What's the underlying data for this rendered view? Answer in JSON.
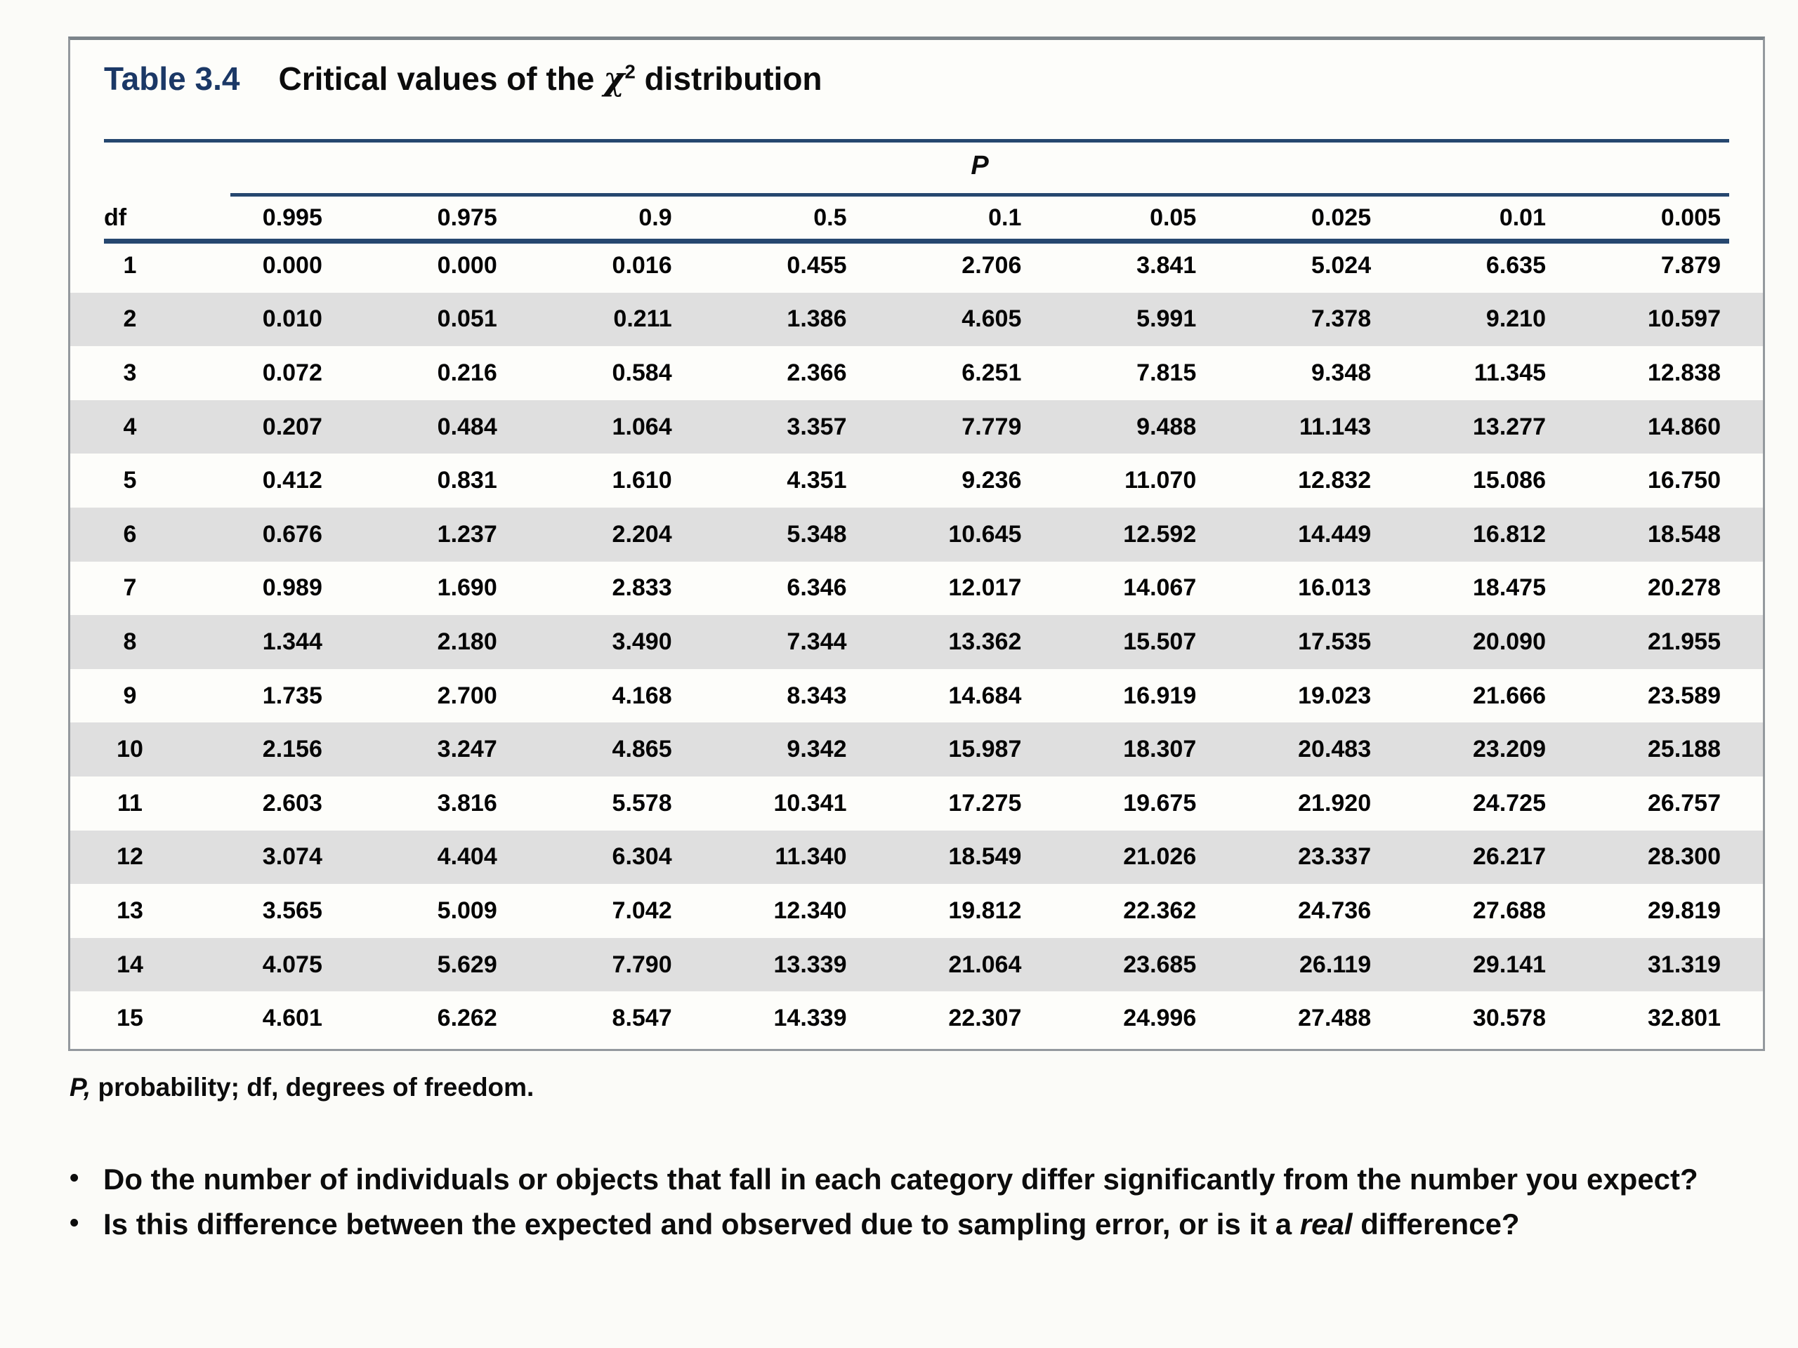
{
  "table": {
    "label": "Table 3.4",
    "title_prefix": "Critical values of the ",
    "chi": "χ",
    "chi_exponent": "2",
    "title_suffix": " distribution",
    "p_group_header": "P",
    "df_header": "df",
    "p_columns": [
      "0.995",
      "0.975",
      "0.9",
      "0.5",
      "0.1",
      "0.05",
      "0.025",
      "0.01",
      "0.005"
    ],
    "rows": [
      {
        "df": "1",
        "values": [
          "0.000",
          "0.000",
          "0.016",
          "0.455",
          "2.706",
          "3.841",
          "5.024",
          "6.635",
          "7.879"
        ]
      },
      {
        "df": "2",
        "values": [
          "0.010",
          "0.051",
          "0.211",
          "1.386",
          "4.605",
          "5.991",
          "7.378",
          "9.210",
          "10.597"
        ]
      },
      {
        "df": "3",
        "values": [
          "0.072",
          "0.216",
          "0.584",
          "2.366",
          "6.251",
          "7.815",
          "9.348",
          "11.345",
          "12.838"
        ]
      },
      {
        "df": "4",
        "values": [
          "0.207",
          "0.484",
          "1.064",
          "3.357",
          "7.779",
          "9.488",
          "11.143",
          "13.277",
          "14.860"
        ]
      },
      {
        "df": "5",
        "values": [
          "0.412",
          "0.831",
          "1.610",
          "4.351",
          "9.236",
          "11.070",
          "12.832",
          "15.086",
          "16.750"
        ]
      },
      {
        "df": "6",
        "values": [
          "0.676",
          "1.237",
          "2.204",
          "5.348",
          "10.645",
          "12.592",
          "14.449",
          "16.812",
          "18.548"
        ]
      },
      {
        "df": "7",
        "values": [
          "0.989",
          "1.690",
          "2.833",
          "6.346",
          "12.017",
          "14.067",
          "16.013",
          "18.475",
          "20.278"
        ]
      },
      {
        "df": "8",
        "values": [
          "1.344",
          "2.180",
          "3.490",
          "7.344",
          "13.362",
          "15.507",
          "17.535",
          "20.090",
          "21.955"
        ]
      },
      {
        "df": "9",
        "values": [
          "1.735",
          "2.700",
          "4.168",
          "8.343",
          "14.684",
          "16.919",
          "19.023",
          "21.666",
          "23.589"
        ]
      },
      {
        "df": "10",
        "values": [
          "2.156",
          "3.247",
          "4.865",
          "9.342",
          "15.987",
          "18.307",
          "20.483",
          "23.209",
          "25.188"
        ]
      },
      {
        "df": "11",
        "values": [
          "2.603",
          "3.816",
          "5.578",
          "10.341",
          "17.275",
          "19.675",
          "21.920",
          "24.725",
          "26.757"
        ]
      },
      {
        "df": "12",
        "values": [
          "3.074",
          "4.404",
          "6.304",
          "11.340",
          "18.549",
          "21.026",
          "23.337",
          "26.217",
          "28.300"
        ]
      },
      {
        "df": "13",
        "values": [
          "3.565",
          "5.009",
          "7.042",
          "12.340",
          "19.812",
          "22.362",
          "24.736",
          "27.688",
          "29.819"
        ]
      },
      {
        "df": "14",
        "values": [
          "4.075",
          "5.629",
          "7.790",
          "13.339",
          "21.064",
          "23.685",
          "26.119",
          "29.141",
          "31.319"
        ]
      },
      {
        "df": "15",
        "values": [
          "4.601",
          "6.262",
          "8.547",
          "14.339",
          "22.307",
          "24.996",
          "27.488",
          "30.578",
          "32.801"
        ]
      }
    ],
    "footnote_p": "P,",
    "footnote_rest": " probability; df, degrees of freedom."
  },
  "bullets": [
    {
      "segments": [
        {
          "text": "Do the number of individuals or objects that fall in each category differ significantly from the number you expect?",
          "italic": false
        }
      ]
    },
    {
      "segments": [
        {
          "text": "Is this difference between the expected and observed due to sampling error, or is it a ",
          "italic": false
        },
        {
          "text": "real",
          "italic": true
        },
        {
          "text": " difference?",
          "italic": false
        }
      ]
    }
  ],
  "colors": {
    "title_navy": "#1b3866",
    "rule_navy": "#26476f",
    "stripe_gray": "#dfdfdf",
    "panel_background": "#fdfdfa"
  }
}
